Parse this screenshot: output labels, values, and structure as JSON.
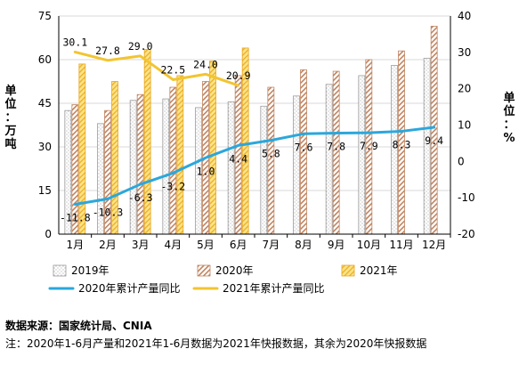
{
  "chart_data": {
    "type": "bar",
    "categories": [
      "1月",
      "2月",
      "3月",
      "4月",
      "5月",
      "6月",
      "7月",
      "8月",
      "9月",
      "10月",
      "11月",
      "12月"
    ],
    "ylim": [
      0,
      75
    ],
    "y2lim": [
      -20,
      40
    ],
    "yticks": [
      0,
      15,
      30,
      45,
      60,
      75
    ],
    "y2ticks": [
      -20,
      -10,
      0,
      10,
      20,
      30,
      40
    ],
    "ylabel": "单位：万吨",
    "y2label": "单位：%",
    "grid": true,
    "legend_position": "bottom",
    "series": [
      {
        "name": "2019年",
        "kind": "bar",
        "pattern": "dots",
        "color": "#8a8a8a",
        "values": [
          42.5,
          38,
          46,
          46.5,
          43.5,
          45.5,
          44,
          47.5,
          51.5,
          54.5,
          58,
          60.5
        ]
      },
      {
        "name": "2020年",
        "kind": "bar",
        "pattern": "hatch",
        "color": "#b5734e",
        "values": [
          44.5,
          42.5,
          48,
          50.5,
          52.5,
          54.5,
          50.5,
          56.5,
          56,
          60,
          63,
          71.5
        ]
      },
      {
        "name": "2021年",
        "kind": "bar",
        "pattern": "hatch",
        "color": "#f5c242",
        "values": [
          58.5,
          52.5,
          63.5,
          54.5,
          59.5,
          64,
          null,
          null,
          null,
          null,
          null,
          null
        ]
      },
      {
        "name": "2020年累计产量同比",
        "kind": "line",
        "axis": "right",
        "color": "#2ba7dc",
        "values": [
          -11.8,
          -10.3,
          -6.3,
          -3.2,
          1.0,
          4.4,
          5.8,
          7.6,
          7.8,
          7.9,
          8.3,
          9.4
        ],
        "labels": [
          "-11.8",
          "-10.3",
          "-6.3",
          "-3.2",
          "1.0",
          "4.4",
          "5.8",
          "7.6",
          "7.8",
          "7.9",
          "8.3",
          "9.4"
        ]
      },
      {
        "name": "2021年累计产量同比",
        "kind": "line",
        "axis": "right",
        "color": "#f2c530",
        "values": [
          30.1,
          27.8,
          29.0,
          22.5,
          24.0,
          20.9,
          null,
          null,
          null,
          null,
          null,
          null
        ],
        "labels": [
          "30.1",
          "27.8",
          "29.0",
          "22.5",
          "24.0",
          "20.9",
          "",
          "",
          "",
          "",
          "",
          ""
        ]
      }
    ]
  },
  "source": "数据来源：国家统计局、CNIA",
  "footnote": "注：2020年1-6月产量和2021年1-6月数据为2021年快报数据，其余为2020年快报数据"
}
